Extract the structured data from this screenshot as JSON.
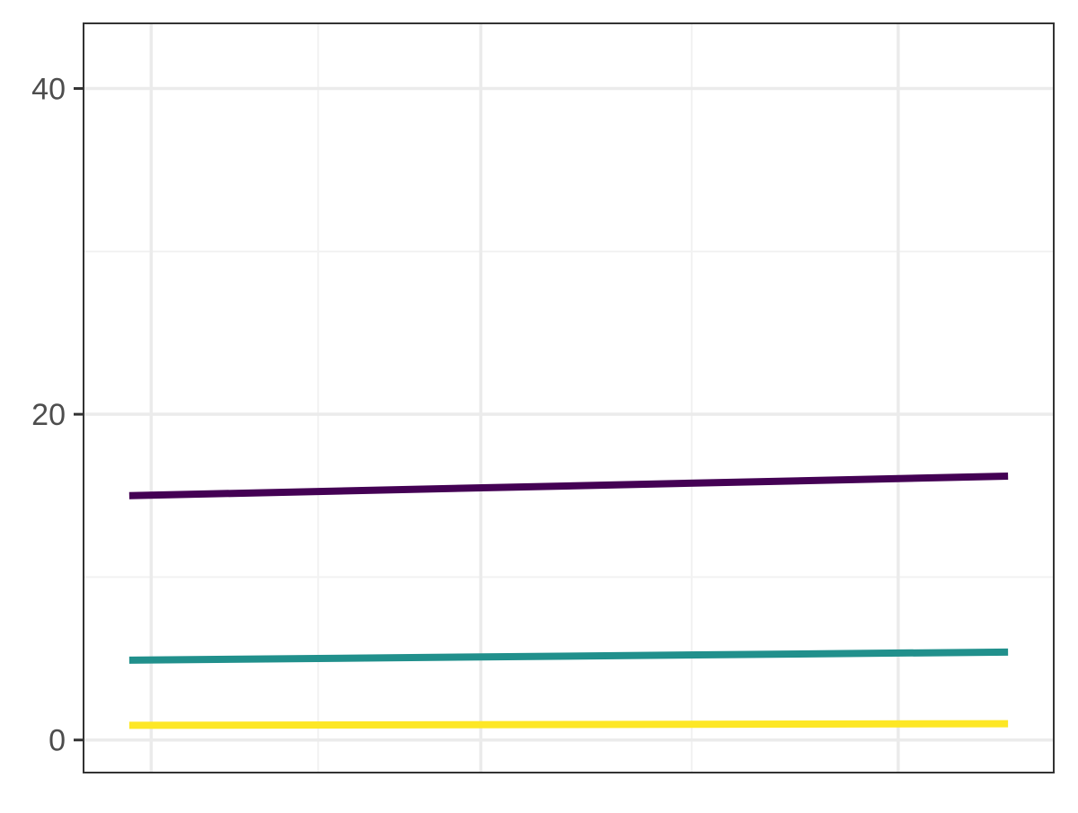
{
  "chart_data": {
    "type": "line",
    "title": "",
    "xlabel": "",
    "ylabel": "",
    "x": [
      0,
      1
    ],
    "xlim": [
      -0.052,
      1.052
    ],
    "ylim": [
      -2.0,
      44.0
    ],
    "yticks": [
      0,
      20,
      40
    ],
    "ytick_labels": [
      "0",
      "20",
      "40"
    ],
    "xticks": [],
    "x_major_gridlines": [
      0.025,
      0.4,
      0.875
    ],
    "x_minor_gridlines": [
      0.215,
      0.64
    ],
    "y_minor_gridlines": [
      10,
      30
    ],
    "grid": true,
    "legend": "none",
    "series": [
      {
        "color": "#440154",
        "values": [
          15.0,
          16.2
        ]
      },
      {
        "color": "#21908C",
        "values": [
          4.9,
          5.4
        ]
      },
      {
        "color": "#FDE725",
        "values": [
          0.9,
          1.0
        ]
      }
    ],
    "colors": {
      "panel_border": "#333333",
      "grid_major": "#EBEBEB",
      "grid_minor": "#F2F2F2",
      "tick_text": "#4D4D4D",
      "tick_mark": "#333333"
    }
  }
}
